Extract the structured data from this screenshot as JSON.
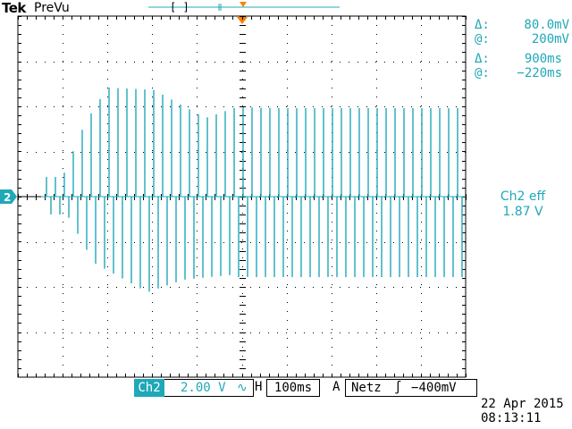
{
  "header": {
    "brand": "Tek",
    "mode": "PreVu"
  },
  "record_bar": {
    "window_marker": "[ ]"
  },
  "channel_marker": "2",
  "cursors": {
    "voltage": {
      "delta_symbol": "Δ:",
      "delta": "80.0mV",
      "at_symbol": "@:",
      "at": "200mV"
    },
    "time": {
      "delta_symbol": "Δ:",
      "delta": "900ms",
      "at_symbol": "@:",
      "at": "−220ms"
    }
  },
  "measurement": {
    "label": "Ch2 eff",
    "value": "1.87 V"
  },
  "status": {
    "channel": "Ch2",
    "volts_per_div": "2.00 V",
    "coupling_icon": "ac-coupling-icon",
    "coupling_symbol": "∿",
    "h_label": "H",
    "time_per_div": "100ms",
    "trigger_mode": "A",
    "trigger_source": "Netz",
    "trigger_slope_icon": "rising-edge-icon",
    "trigger_slope_symbol": "∫",
    "trigger_level": "−400mV"
  },
  "datetime": {
    "date": "22 Apr  2015",
    "time": "08:13:11"
  },
  "colors": {
    "trace": "#1fa8b8",
    "grid": "#000000",
    "marker": "#ff8000",
    "readout": "#1fa8b8"
  }
}
